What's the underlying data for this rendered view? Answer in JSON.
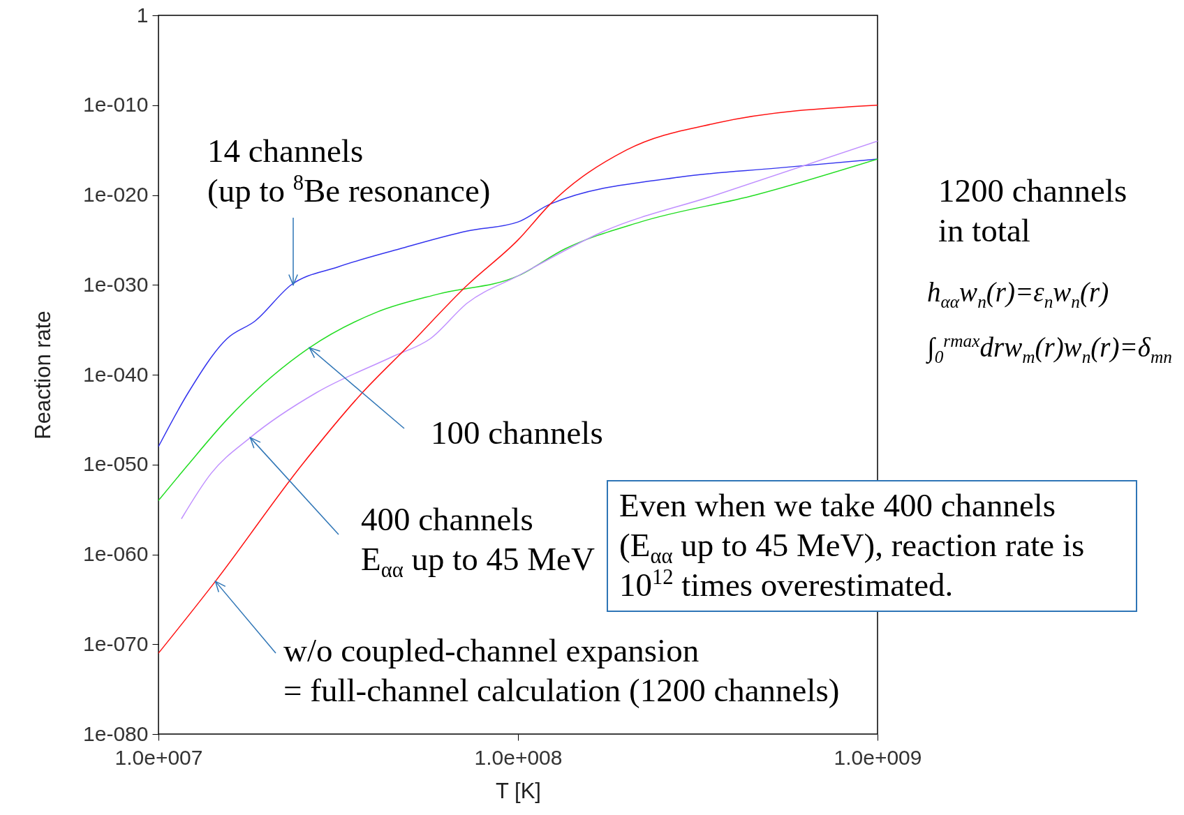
{
  "chart_data": {
    "type": "line",
    "xlabel": "T [K]",
    "ylabel": "Reaction rate",
    "log": "xy",
    "grid": false,
    "legend": false,
    "marker": "none",
    "line_style": "solid",
    "xlim": [
      10000000,
      1000000000
    ],
    "xticks": [
      {
        "value": 10000000,
        "label": "1.0e+007"
      },
      {
        "value": 100000000,
        "label": "1.0e+008"
      },
      {
        "value": 1000000000,
        "label": "1.0e+009"
      }
    ],
    "ylim": [
      1e-80,
      1
    ],
    "yticks": [
      {
        "value": 1e-80,
        "label": "1e-080"
      },
      {
        "value": 1e-70,
        "label": "1e-070"
      },
      {
        "value": 1e-60,
        "label": "1e-060"
      },
      {
        "value": 1e-50,
        "label": "1e-050"
      },
      {
        "value": 1e-40,
        "label": "1e-040"
      },
      {
        "value": 1e-30,
        "label": "1e-030"
      },
      {
        "value": 1e-20,
        "label": "1e-020"
      },
      {
        "value": 1e-10,
        "label": "1e-010"
      },
      1
    ],
    "series": [
      {
        "color": "#3333ee",
        "x": [
          10000000,
          12100000,
          15500000,
          18600000,
          23400000,
          31600000,
          46800000,
          72400000,
          100000000,
          123000000,
          282000000,
          525000000,
          1000000000
        ],
        "values": [
          1e-48,
          1e-42,
          1e-36,
          1e-34,
          1e-30,
          1e-28,
          1e-26,
          1e-24,
          1e-23,
          1e-21,
          1e-18,
          1e-17,
          1e-16
        ]
      },
      {
        "color": "#22dd22",
        "x": [
          10000000,
          12100000,
          15500000,
          26300000,
          40700000,
          60300000,
          100000000,
          135000000,
          219000000,
          457000000,
          1000000000
        ],
        "values": [
          1e-54,
          1e-50,
          1e-45,
          1e-37,
          1e-33,
          1e-31,
          1e-29,
          1e-26,
          1e-23,
          1e-20,
          1e-16
        ]
      },
      {
        "color": "#c090ff",
        "x": [
          11600000,
          14000000,
          18000000,
          27500000,
          44700000,
          57000000,
          72400000,
          100000000,
          174000000,
          355000000,
          1000000000
        ],
        "values": [
          1e-56,
          1e-51,
          1e-47,
          1e-42,
          1e-38,
          1e-36,
          1e-32,
          1e-29,
          1e-24,
          1e-20,
          1e-14
        ]
      },
      {
        "color": "#ff1111",
        "x": [
          10000000,
          14400000,
          25100000,
          36900000,
          49000000,
          72400000,
          100000000,
          123000000,
          200000000,
          355000000,
          1000000000
        ],
        "values": [
          1e-71,
          1e-63,
          1e-50,
          1e-42,
          1e-37,
          1e-30,
          1e-25,
          1e-21,
          1e-15,
          1e-12,
          1e-10
        ]
      }
    ],
    "annotations": [
      {
        "text": "14 channels\n(up to $^{8}$Be resonance)",
        "x": 23700000,
        "y": 1e-30
      },
      {
        "text": "100 channels",
        "x": 26300000,
        "y": 1e-37
      },
      {
        "text": "400 channels\nE$_{αα}$ up to 45 MeV",
        "x": 18000000,
        "y": 1e-47
      },
      {
        "text": "w/o coupled-channel expansion\n= full-channel calculation (1200 channels)",
        "x": 14400000,
        "y": 1e-63
      },
      "1200 channels\nin total",
      "h$_{αα}$w$_{n}$(r)=ε$_{n}$w$_{n}$(r)",
      "∫$_{0}$$^{rmax}$drw$_{m}$(r)w$_{n}$(r)=δ$_{mn}$",
      "Even when we take 400 channels\n (E$_{αα}$ up to 45 MeV), reaction rate is\n10$^{12}$ times overestimated."
    ]
  }
}
